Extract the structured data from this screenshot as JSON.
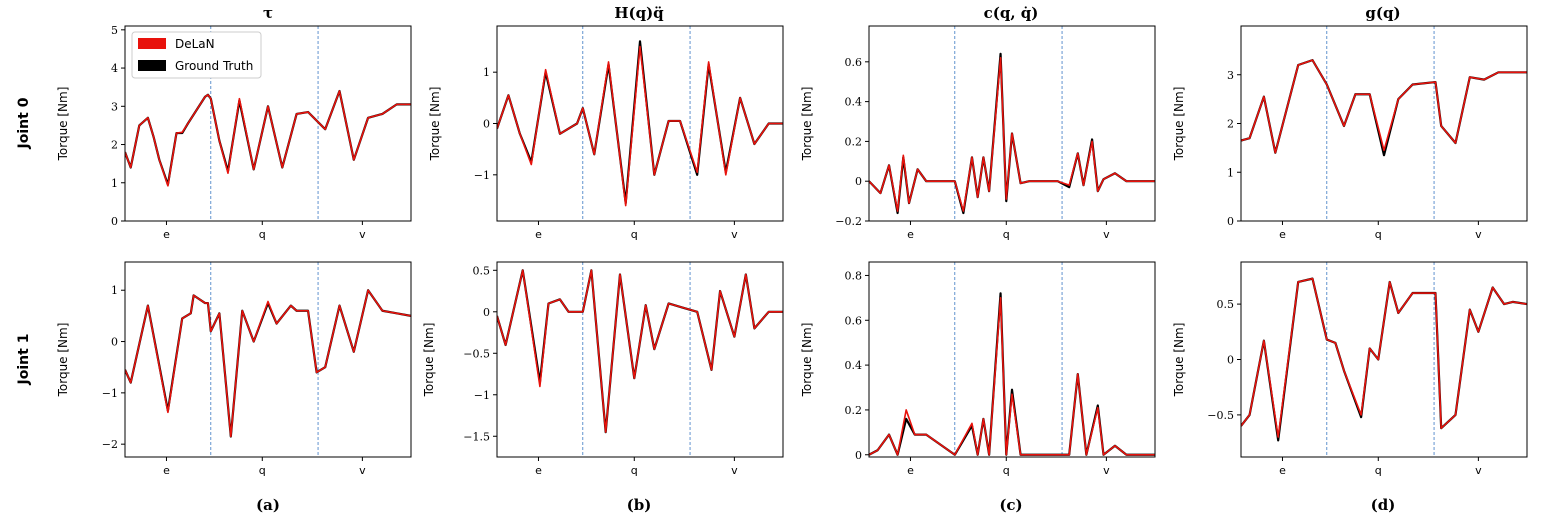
{
  "figure": {
    "row_labels": [
      "Joint 0",
      "Joint 1"
    ],
    "column_titles": [
      "τ",
      "H(q)q̈",
      "c(q, q̇)",
      "g(q)"
    ],
    "panel_labels": [
      "(a)",
      "(b)",
      "(c)",
      "(d)"
    ],
    "segment_labels": [
      "e",
      "q",
      "v"
    ],
    "ylabel": "Torque [Nm]",
    "legend": {
      "placement": "upper-left of first panel",
      "entries": [
        "DeLaN",
        "Ground Truth"
      ]
    },
    "colors": {
      "delan": "#e8120c",
      "ground_truth": "#000000",
      "divider": "#3a78c2",
      "axis": "#000000"
    }
  },
  "chart_data": [
    {
      "type": "line",
      "row": 0,
      "col": 0,
      "title": "τ",
      "ylabel": "Torque [Nm]",
      "ylim": [
        0,
        5.1
      ],
      "yticks": [
        0,
        1,
        2,
        3,
        4,
        5
      ],
      "series": [
        {
          "name": "Ground Truth",
          "x": [
            0,
            0.02,
            0.05,
            0.08,
            0.1,
            0.12,
            0.15,
            0.18,
            0.2,
            0.22,
            0.25,
            0.28,
            0.29,
            0.3,
            0.33,
            0.36,
            0.4,
            0.45,
            0.5,
            0.55,
            0.6,
            0.64,
            0.7,
            0.75,
            0.8,
            0.85,
            0.9,
            0.95,
            1.0
          ],
          "y": [
            1.8,
            1.4,
            2.5,
            2.7,
            2.2,
            1.6,
            0.95,
            2.3,
            2.3,
            2.55,
            2.9,
            3.25,
            3.3,
            3.2,
            2.1,
            1.3,
            3.15,
            1.35,
            3.0,
            1.4,
            2.8,
            2.85,
            2.4,
            3.4,
            1.6,
            2.7,
            2.8,
            3.05,
            3.05
          ]
        },
        {
          "name": "DeLaN",
          "x": [
            0,
            0.02,
            0.05,
            0.08,
            0.1,
            0.12,
            0.15,
            0.18,
            0.2,
            0.22,
            0.25,
            0.28,
            0.29,
            0.3,
            0.33,
            0.36,
            0.4,
            0.45,
            0.5,
            0.55,
            0.6,
            0.64,
            0.7,
            0.75,
            0.8,
            0.85,
            0.9,
            0.95,
            1.0
          ],
          "y": [
            1.8,
            1.4,
            2.5,
            2.7,
            2.2,
            1.6,
            0.92,
            2.3,
            2.32,
            2.55,
            2.9,
            3.25,
            3.3,
            3.2,
            2.1,
            1.25,
            3.2,
            1.35,
            3.0,
            1.4,
            2.8,
            2.85,
            2.4,
            3.4,
            1.6,
            2.7,
            2.8,
            3.05,
            3.05
          ]
        }
      ]
    },
    {
      "type": "line",
      "row": 0,
      "col": 1,
      "title": "H(q)q̈",
      "ylabel": "Torque [Nm]",
      "ylim": [
        -1.9,
        1.9
      ],
      "yticks": [
        -1,
        0,
        1
      ],
      "series": [
        {
          "name": "Ground Truth",
          "x": [
            0,
            0.04,
            0.08,
            0.12,
            0.17,
            0.22,
            0.28,
            0.3,
            0.34,
            0.39,
            0.45,
            0.5,
            0.55,
            0.6,
            0.64,
            0.7,
            0.74,
            0.8,
            0.85,
            0.9,
            0.95,
            1.0
          ],
          "y": [
            -0.1,
            0.55,
            -0.2,
            -0.75,
            1.0,
            -0.2,
            0.0,
            0.3,
            -0.6,
            1.15,
            -1.55,
            1.6,
            -1.0,
            0.05,
            0.05,
            -1.0,
            1.15,
            -0.95,
            0.5,
            -0.4,
            0.0,
            0.0
          ]
        },
        {
          "name": "DeLaN",
          "x": [
            0,
            0.04,
            0.08,
            0.12,
            0.17,
            0.22,
            0.28,
            0.3,
            0.34,
            0.39,
            0.45,
            0.5,
            0.55,
            0.6,
            0.64,
            0.7,
            0.74,
            0.8,
            0.85,
            0.9,
            0.95,
            1.0
          ],
          "y": [
            -0.1,
            0.55,
            -0.2,
            -0.8,
            1.05,
            -0.2,
            0.0,
            0.3,
            -0.6,
            1.2,
            -1.6,
            1.5,
            -1.0,
            0.05,
            0.05,
            -0.95,
            1.2,
            -1.0,
            0.5,
            -0.4,
            0.0,
            0.0
          ]
        }
      ]
    },
    {
      "type": "line",
      "row": 0,
      "col": 2,
      "title": "c(q, q̇)",
      "ylabel": "Torque [Nm]",
      "ylim": [
        -0.2,
        0.78
      ],
      "yticks": [
        -0.2,
        0.0,
        0.2,
        0.4,
        0.6
      ],
      "series": [
        {
          "name": "Ground Truth",
          "x": [
            0,
            0.04,
            0.07,
            0.1,
            0.12,
            0.14,
            0.17,
            0.2,
            0.3,
            0.33,
            0.36,
            0.38,
            0.4,
            0.42,
            0.46,
            0.48,
            0.5,
            0.53,
            0.56,
            0.6,
            0.66,
            0.7,
            0.73,
            0.75,
            0.78,
            0.8,
            0.82,
            0.86,
            0.9,
            1.0
          ],
          "y": [
            0.0,
            -0.06,
            0.08,
            -0.16,
            0.12,
            -0.11,
            0.06,
            0.0,
            0.0,
            -0.16,
            0.12,
            -0.08,
            0.12,
            -0.05,
            0.64,
            -0.1,
            0.24,
            -0.01,
            0.0,
            0.0,
            0.0,
            -0.03,
            0.14,
            -0.02,
            0.21,
            -0.05,
            0.01,
            0.04,
            0.0,
            0.0
          ]
        },
        {
          "name": "DeLaN",
          "x": [
            0,
            0.04,
            0.07,
            0.1,
            0.12,
            0.14,
            0.17,
            0.2,
            0.3,
            0.33,
            0.36,
            0.38,
            0.4,
            0.42,
            0.46,
            0.48,
            0.5,
            0.53,
            0.56,
            0.6,
            0.66,
            0.7,
            0.73,
            0.75,
            0.78,
            0.8,
            0.82,
            0.86,
            0.9,
            1.0
          ],
          "y": [
            0.0,
            -0.06,
            0.08,
            -0.15,
            0.13,
            -0.11,
            0.06,
            0.0,
            0.0,
            -0.15,
            0.12,
            -0.08,
            0.12,
            -0.05,
            0.62,
            -0.09,
            0.24,
            -0.01,
            0.0,
            0.0,
            0.0,
            -0.02,
            0.14,
            -0.02,
            0.2,
            -0.05,
            0.01,
            0.04,
            0.0,
            0.0
          ]
        }
      ]
    },
    {
      "type": "line",
      "row": 0,
      "col": 3,
      "title": "g(q)",
      "ylabel": "Torque [Nm]",
      "ylim": [
        0,
        4.0
      ],
      "yticks": [
        0,
        1,
        2,
        3
      ],
      "series": [
        {
          "name": "Ground Truth",
          "x": [
            0,
            0.03,
            0.08,
            0.12,
            0.2,
            0.25,
            0.3,
            0.36,
            0.4,
            0.45,
            0.5,
            0.55,
            0.6,
            0.68,
            0.7,
            0.75,
            0.8,
            0.85,
            0.9,
            0.95,
            1.0
          ],
          "y": [
            1.65,
            1.7,
            2.55,
            1.4,
            3.2,
            3.3,
            2.8,
            1.95,
            2.6,
            2.6,
            1.35,
            2.5,
            2.8,
            2.85,
            1.95,
            1.6,
            2.95,
            2.9,
            3.05,
            3.05,
            3.05
          ]
        },
        {
          "name": "DeLaN",
          "x": [
            0,
            0.03,
            0.08,
            0.12,
            0.2,
            0.25,
            0.3,
            0.36,
            0.4,
            0.45,
            0.5,
            0.55,
            0.6,
            0.68,
            0.7,
            0.75,
            0.8,
            0.85,
            0.9,
            0.95,
            1.0
          ],
          "y": [
            1.65,
            1.7,
            2.55,
            1.4,
            3.2,
            3.3,
            2.8,
            1.95,
            2.6,
            2.6,
            1.45,
            2.5,
            2.8,
            2.85,
            1.95,
            1.6,
            2.95,
            2.9,
            3.05,
            3.05,
            3.05
          ]
        }
      ]
    },
    {
      "type": "line",
      "row": 1,
      "col": 0,
      "title": "",
      "ylabel": "Torque [Nm]",
      "ylim": [
        -2.25,
        1.55
      ],
      "yticks": [
        -2,
        -1,
        0,
        1
      ],
      "series": [
        {
          "name": "Ground Truth",
          "x": [
            0,
            0.02,
            0.08,
            0.15,
            0.2,
            0.23,
            0.24,
            0.28,
            0.29,
            0.3,
            0.33,
            0.37,
            0.41,
            0.45,
            0.5,
            0.53,
            0.58,
            0.6,
            0.64,
            0.67,
            0.7,
            0.75,
            0.8,
            0.85,
            0.9,
            0.95,
            1.0
          ],
          "y": [
            -0.55,
            -0.8,
            0.7,
            -1.35,
            0.45,
            0.55,
            0.9,
            0.75,
            0.75,
            0.2,
            0.55,
            -1.85,
            0.6,
            0.0,
            0.75,
            0.35,
            0.7,
            0.6,
            0.6,
            -0.6,
            -0.5,
            0.7,
            -0.2,
            1.0,
            0.6,
            0.55,
            0.5
          ]
        },
        {
          "name": "DeLaN",
          "x": [
            0,
            0.02,
            0.08,
            0.15,
            0.2,
            0.23,
            0.24,
            0.28,
            0.29,
            0.3,
            0.33,
            0.37,
            0.41,
            0.45,
            0.5,
            0.53,
            0.58,
            0.6,
            0.64,
            0.67,
            0.7,
            0.75,
            0.8,
            0.85,
            0.9,
            0.95,
            1.0
          ],
          "y": [
            -0.55,
            -0.8,
            0.7,
            -1.38,
            0.45,
            0.55,
            0.9,
            0.75,
            0.75,
            0.2,
            0.55,
            -1.85,
            0.6,
            0.0,
            0.78,
            0.35,
            0.7,
            0.6,
            0.6,
            -0.6,
            -0.5,
            0.7,
            -0.2,
            1.0,
            0.6,
            0.55,
            0.5
          ]
        }
      ]
    },
    {
      "type": "line",
      "row": 1,
      "col": 1,
      "title": "",
      "ylabel": "Torque [Nm]",
      "ylim": [
        -1.75,
        0.6
      ],
      "yticks": [
        -1.5,
        -1.0,
        -0.5,
        0.0,
        0.5
      ],
      "series": [
        {
          "name": "Ground Truth",
          "x": [
            0,
            0.03,
            0.09,
            0.15,
            0.18,
            0.22,
            0.25,
            0.3,
            0.33,
            0.38,
            0.43,
            0.48,
            0.52,
            0.55,
            0.6,
            0.65,
            0.7,
            0.75,
            0.78,
            0.83,
            0.87,
            0.9,
            0.95,
            1.0
          ],
          "y": [
            -0.05,
            -0.4,
            0.5,
            -0.85,
            0.1,
            0.15,
            0.0,
            0.0,
            0.5,
            -1.45,
            0.45,
            -0.8,
            0.08,
            -0.45,
            0.1,
            0.05,
            0.0,
            -0.7,
            0.25,
            -0.3,
            0.45,
            -0.2,
            0.0,
            0.0
          ]
        },
        {
          "name": "DeLaN",
          "x": [
            0,
            0.03,
            0.09,
            0.15,
            0.18,
            0.22,
            0.25,
            0.3,
            0.33,
            0.38,
            0.43,
            0.48,
            0.52,
            0.55,
            0.6,
            0.65,
            0.7,
            0.75,
            0.78,
            0.83,
            0.87,
            0.9,
            0.95,
            1.0
          ],
          "y": [
            -0.05,
            -0.4,
            0.5,
            -0.9,
            0.1,
            0.15,
            0.0,
            0.0,
            0.5,
            -1.45,
            0.45,
            -0.8,
            0.08,
            -0.45,
            0.1,
            0.05,
            0.0,
            -0.7,
            0.25,
            -0.3,
            0.45,
            -0.2,
            0.0,
            0.0
          ]
        }
      ]
    },
    {
      "type": "line",
      "row": 1,
      "col": 2,
      "title": "",
      "ylabel": "Torque [Nm]",
      "ylim": [
        -0.01,
        0.86
      ],
      "yticks": [
        0.0,
        0.2,
        0.4,
        0.6,
        0.8
      ],
      "series": [
        {
          "name": "Ground Truth",
          "x": [
            0,
            0.03,
            0.07,
            0.1,
            0.13,
            0.16,
            0.2,
            0.3,
            0.36,
            0.38,
            0.4,
            0.42,
            0.46,
            0.48,
            0.5,
            0.53,
            0.56,
            0.6,
            0.64,
            0.7,
            0.73,
            0.76,
            0.8,
            0.82,
            0.86,
            0.9,
            1.0
          ],
          "y": [
            0.0,
            0.02,
            0.09,
            0.0,
            0.16,
            0.09,
            0.09,
            0.0,
            0.13,
            0.0,
            0.16,
            0.0,
            0.72,
            0.0,
            0.29,
            0.0,
            0.0,
            0.0,
            0.0,
            0.0,
            0.36,
            0.0,
            0.22,
            0.0,
            0.04,
            0.0,
            0.0
          ]
        },
        {
          "name": "DeLaN",
          "x": [
            0,
            0.03,
            0.07,
            0.1,
            0.13,
            0.16,
            0.2,
            0.3,
            0.36,
            0.38,
            0.4,
            0.42,
            0.46,
            0.48,
            0.5,
            0.53,
            0.56,
            0.6,
            0.64,
            0.7,
            0.73,
            0.76,
            0.8,
            0.82,
            0.86,
            0.9,
            1.0
          ],
          "y": [
            0.0,
            0.02,
            0.09,
            0.0,
            0.2,
            0.09,
            0.09,
            0.0,
            0.14,
            0.0,
            0.16,
            0.0,
            0.7,
            0.0,
            0.27,
            0.0,
            0.0,
            0.0,
            0.0,
            0.0,
            0.36,
            0.0,
            0.21,
            0.0,
            0.04,
            0.0,
            0.0
          ]
        }
      ]
    },
    {
      "type": "line",
      "row": 1,
      "col": 3,
      "title": "",
      "ylabel": "Torque [Nm]",
      "ylim": [
        -0.88,
        0.88
      ],
      "yticks": [
        -0.5,
        0.0,
        0.5
      ],
      "series": [
        {
          "name": "Ground Truth",
          "x": [
            0,
            0.03,
            0.08,
            0.13,
            0.2,
            0.25,
            0.3,
            0.33,
            0.36,
            0.42,
            0.45,
            0.48,
            0.52,
            0.55,
            0.6,
            0.68,
            0.7,
            0.75,
            0.8,
            0.83,
            0.88,
            0.92,
            0.95,
            1.0
          ],
          "y": [
            -0.6,
            -0.5,
            0.17,
            -0.73,
            0.7,
            0.73,
            0.18,
            0.15,
            -0.1,
            -0.52,
            0.1,
            0.0,
            0.7,
            0.42,
            0.6,
            0.6,
            -0.62,
            -0.5,
            0.45,
            0.25,
            0.65,
            0.5,
            0.52,
            0.5
          ]
        },
        {
          "name": "DeLaN",
          "x": [
            0,
            0.03,
            0.08,
            0.13,
            0.2,
            0.25,
            0.3,
            0.33,
            0.36,
            0.42,
            0.45,
            0.48,
            0.52,
            0.55,
            0.6,
            0.68,
            0.7,
            0.75,
            0.8,
            0.83,
            0.88,
            0.92,
            0.95,
            1.0
          ],
          "y": [
            -0.6,
            -0.5,
            0.17,
            -0.7,
            0.7,
            0.73,
            0.18,
            0.15,
            -0.1,
            -0.5,
            0.1,
            0.0,
            0.7,
            0.42,
            0.6,
            0.6,
            -0.62,
            -0.5,
            0.45,
            0.25,
            0.65,
            0.5,
            0.52,
            0.5
          ]
        }
      ]
    }
  ]
}
